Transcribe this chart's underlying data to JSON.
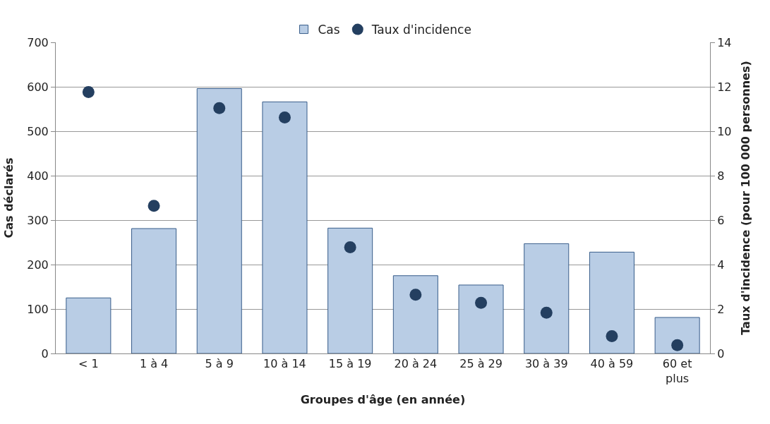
{
  "chart_data": {
    "type": "bar",
    "categories": [
      "< 1",
      "1 à 4",
      "5 à 9",
      "10 à 14",
      "15 à 19",
      "20 à 24",
      "25 à 29",
      "30 à 39",
      "40 à 59",
      "60 et plus"
    ],
    "series": [
      {
        "name": "Cas",
        "color": "#b9cde5",
        "values": [
          125,
          281,
          596,
          566,
          282,
          175,
          154,
          247,
          228,
          81
        ]
      },
      {
        "name": "Taux d'incidence",
        "type": "scatter",
        "axis": "y2",
        "color": "#243f60",
        "values": [
          11.76,
          6.64,
          11.04,
          10.62,
          4.78,
          2.64,
          2.28,
          1.83,
          0.78,
          0.37
        ]
      }
    ],
    "xlabel": "Groupes d'âge (en année)",
    "ylabel": "Cas déclarés",
    "y2label": "Taux d'incidence (pour 100 000 personnes)",
    "ylim": [
      0,
      700
    ],
    "yticks": [
      0,
      100,
      200,
      300,
      400,
      500,
      600,
      700
    ],
    "y2lim": [
      0,
      14
    ],
    "y2ticks": [
      0,
      2,
      4,
      6,
      8,
      10,
      12,
      14
    ],
    "grid": "y",
    "legend": "top",
    "marker": "circle"
  }
}
